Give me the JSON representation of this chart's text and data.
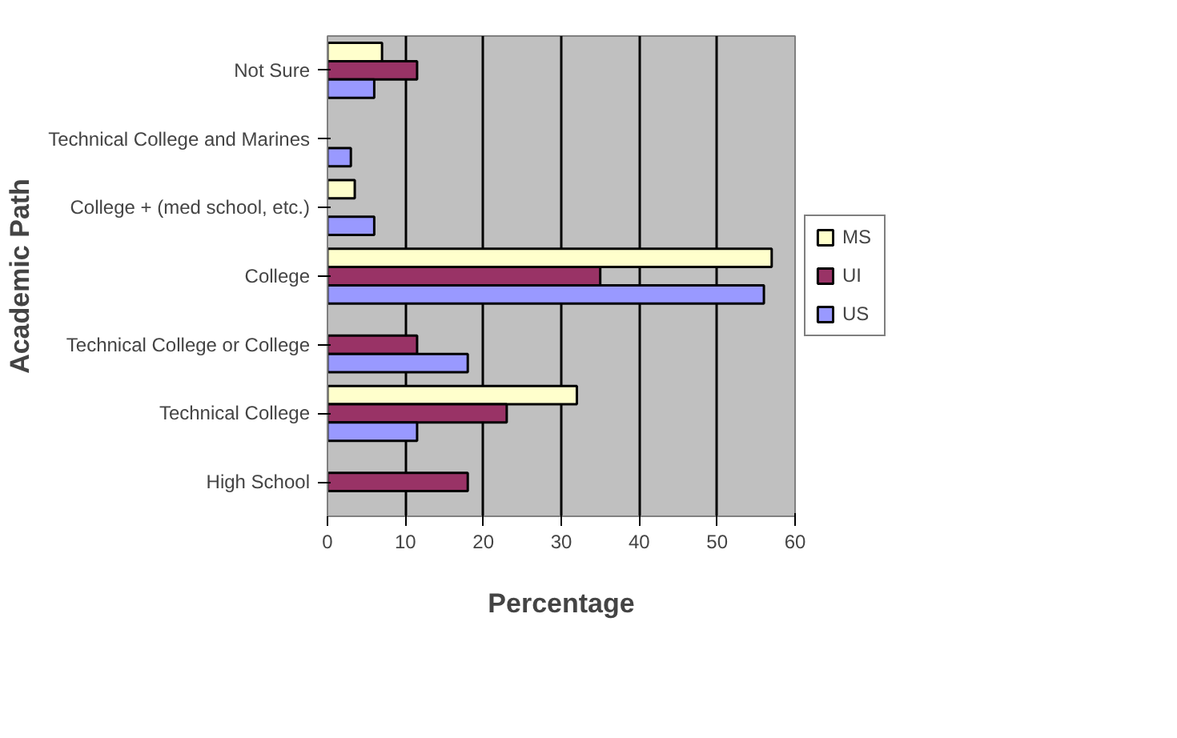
{
  "chart_data": {
    "type": "bar",
    "orientation": "horizontal",
    "xlabel": "Percentage",
    "ylabel": "Academic Path",
    "categories": [
      "Not Sure",
      "Technical College and Marines",
      "College + (med school, etc.)",
      "College",
      "Technical College or College",
      "Technical College",
      "High School"
    ],
    "series": [
      {
        "name": "MS",
        "color": "#ffffcc",
        "values": [
          7,
          null,
          3.5,
          57,
          null,
          32,
          null
        ]
      },
      {
        "name": "UI",
        "color": "#993366",
        "values": [
          11.5,
          null,
          null,
          35,
          11.5,
          23,
          18
        ]
      },
      {
        "name": "US",
        "color": "#9999ff",
        "values": [
          6,
          3,
          6,
          56,
          18,
          11.5,
          null
        ]
      }
    ],
    "xlim": [
      0,
      60
    ],
    "xticks": [
      0,
      10,
      20,
      30,
      40,
      50,
      60
    ],
    "grid": "x",
    "legend": "right"
  }
}
